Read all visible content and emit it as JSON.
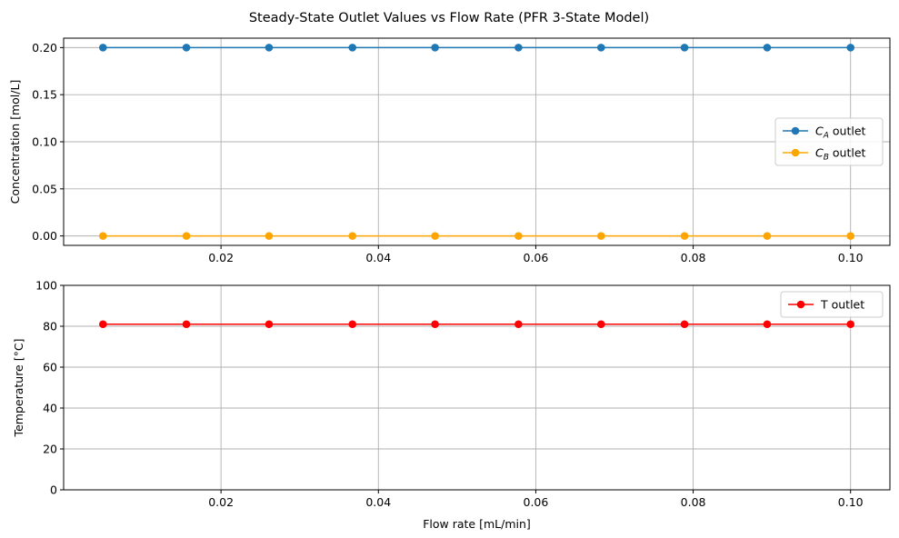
{
  "title": "Steady-State Outlet Values vs Flow Rate (PFR 3-State Model)",
  "chart_data": [
    {
      "type": "line",
      "xlabel": "",
      "ylabel": "Concentration [mol/L]",
      "xlim": [
        0.0,
        0.105
      ],
      "ylim": [
        -0.01,
        0.21
      ],
      "xticks": [
        0.02,
        0.04,
        0.06,
        0.08,
        0.1
      ],
      "xtick_labels": [
        "0.02",
        "0.04",
        "0.06",
        "0.08",
        "0.10"
      ],
      "yticks": [
        0.0,
        0.05,
        0.1,
        0.15,
        0.2
      ],
      "ytick_labels": [
        "0.00",
        "0.05",
        "0.10",
        "0.15",
        "0.20"
      ],
      "grid": true,
      "legend": "center-right",
      "x": [
        0.005,
        0.0156,
        0.0261,
        0.0367,
        0.0472,
        0.0578,
        0.0683,
        0.0789,
        0.0894,
        0.1
      ],
      "series": [
        {
          "name_base": "C",
          "name_sub": "A",
          "name_suffix": " outlet",
          "color": "#1f77b4",
          "values": [
            0.2,
            0.2,
            0.2,
            0.2,
            0.2,
            0.2,
            0.2,
            0.2,
            0.2,
            0.2
          ]
        },
        {
          "name_base": "C",
          "name_sub": "B",
          "name_suffix": " outlet",
          "color": "#ffa500",
          "values": [
            0.0,
            0.0,
            0.0,
            0.0,
            0.0,
            0.0,
            0.0,
            0.0,
            0.0,
            0.0
          ]
        }
      ]
    },
    {
      "type": "line",
      "xlabel": "Flow rate [mL/min]",
      "ylabel": "Temperature [°C]",
      "xlim": [
        0.0,
        0.105
      ],
      "ylim": [
        0,
        100
      ],
      "xticks": [
        0.02,
        0.04,
        0.06,
        0.08,
        0.1
      ],
      "xtick_labels": [
        "0.02",
        "0.04",
        "0.06",
        "0.08",
        "0.10"
      ],
      "yticks": [
        0,
        20,
        40,
        60,
        80,
        100
      ],
      "ytick_labels": [
        "0",
        "20",
        "40",
        "60",
        "80",
        "100"
      ],
      "grid": true,
      "legend": "top-right",
      "x": [
        0.005,
        0.0156,
        0.0261,
        0.0367,
        0.0472,
        0.0578,
        0.0683,
        0.0789,
        0.0894,
        0.1
      ],
      "series": [
        {
          "name": "T outlet",
          "color": "#ff0000",
          "values": [
            81,
            81,
            81,
            81,
            81,
            81,
            81,
            81,
            81,
            81
          ]
        }
      ]
    }
  ]
}
